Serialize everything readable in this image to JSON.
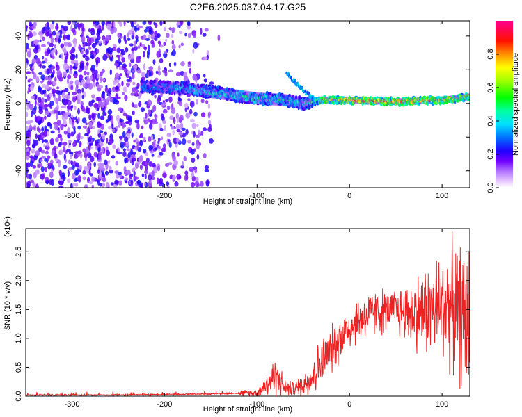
{
  "title": "C2E6.2025.037.04.17.G25",
  "chart_data": [
    {
      "type": "heatmap",
      "title": "C2E6.2025.037.04.17.G25",
      "xlabel": "Height of straight line (km)",
      "ylabel": "Frequency (Hz)",
      "xlim": [
        -350,
        130
      ],
      "ylim": [
        -50,
        49
      ],
      "xticks": [
        -300,
        -200,
        -100,
        0,
        100
      ],
      "yticks": [
        -40,
        -20,
        0,
        20,
        40
      ],
      "colorbar": {
        "label": "Normalized spectral amplitude",
        "range": [
          0,
          1
        ],
        "ticks": [
          0.0,
          0.2,
          0.4,
          0.6,
          0.8
        ],
        "tick_labels": [
          "0.0",
          "0.2",
          "0.4",
          "0.6",
          "0.8"
        ],
        "colormap": [
          "#ffffff",
          "#e0b0ff",
          "#8000ff",
          "#0000ff",
          "#00ffff",
          "#00ff00",
          "#ffff00",
          "#ff8000",
          "#ff0000",
          "#ff00a0"
        ]
      },
      "features": [
        {
          "name": "scattered noise",
          "x_range": [
            -350,
            -140
          ],
          "freq_range": [
            -50,
            49
          ],
          "amplitude": 0.2
        },
        {
          "name": "main band",
          "x": [
            -220,
            -180,
            -140,
            -100,
            -70,
            -50,
            -30,
            0,
            50,
            100,
            130
          ],
          "freq": [
            10,
            9,
            6,
            3,
            2,
            0,
            2,
            2,
            1,
            2,
            4
          ],
          "amplitude": [
            0.4,
            0.45,
            0.5,
            0.55,
            0.5,
            0.5,
            0.75,
            0.9,
            0.9,
            0.85,
            0.7
          ]
        },
        {
          "name": "branch",
          "x": [
            -68,
            -60,
            -50,
            -40,
            -35
          ],
          "freq": [
            18,
            13,
            8,
            3,
            0
          ],
          "amplitude": 0.35
        }
      ]
    },
    {
      "type": "line",
      "xlabel": "Height of straight line (km)",
      "ylabel": "SNR (10 * v/v)",
      "y_scale_label": "(x10⁴)",
      "xlim": [
        -350,
        130
      ],
      "ylim": [
        0,
        2.9
      ],
      "xticks": [
        -300,
        -200,
        -100,
        0,
        100
      ],
      "yticks": [
        0.0,
        0.5,
        1.0,
        1.5,
        2.0,
        2.5
      ],
      "ytick_labels": [
        "0.0",
        "0.5",
        "1.0",
        "1.5",
        "2.0",
        "2.5"
      ],
      "color": "#ee2222",
      "series": [
        {
          "x": [
            -350,
            -300,
            -250,
            -200,
            -150,
            -100,
            -90,
            -80,
            -70,
            -60,
            -50,
            -40,
            -30,
            -20,
            -10,
            0,
            10,
            20,
            30,
            40,
            50,
            60,
            70,
            80,
            90,
            100,
            110,
            120,
            130
          ],
          "y": [
            0.02,
            0.02,
            0.02,
            0.03,
            0.04,
            0.06,
            0.2,
            0.35,
            0.15,
            0.12,
            0.2,
            0.35,
            0.6,
            0.8,
            1.0,
            1.2,
            1.32,
            1.4,
            1.45,
            1.47,
            1.48,
            1.47,
            1.45,
            1.48,
            1.5,
            1.55,
            1.6,
            1.4,
            1.3
          ]
        }
      ]
    }
  ]
}
